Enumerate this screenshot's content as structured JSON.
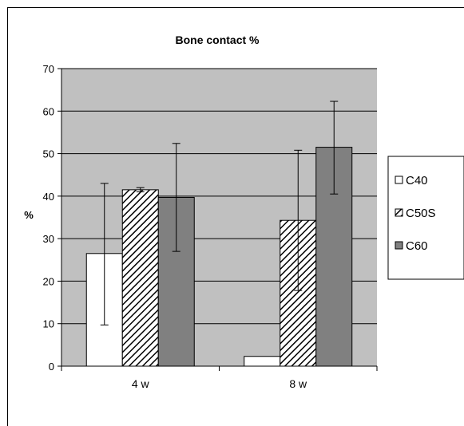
{
  "chart_data": {
    "type": "bar",
    "title": "Bone contact %",
    "xlabel": "",
    "ylabel": "%",
    "ylim": [
      0,
      70
    ],
    "yticks": [
      0,
      10,
      20,
      30,
      40,
      50,
      60,
      70
    ],
    "grid": true,
    "legend_position": "right",
    "categories": [
      "4 w",
      "8 w"
    ],
    "series": [
      {
        "name": "C40",
        "values": [
          26.5,
          2.3
        ],
        "error_low": [
          9.7,
          null
        ],
        "error_high": [
          43.0,
          null
        ],
        "fill": "#ffffff",
        "pattern": "none"
      },
      {
        "name": "C50S",
        "values": [
          41.5,
          34.3
        ],
        "error_low": [
          41.0,
          17.8
        ],
        "error_high": [
          42.0,
          50.8
        ],
        "fill": "#ffffff",
        "pattern": "diagonal-hatch"
      },
      {
        "name": "C60",
        "values": [
          39.7,
          51.5
        ],
        "error_low": [
          27.0,
          40.5
        ],
        "error_high": [
          52.4,
          62.3
        ],
        "fill": "#808080",
        "pattern": "none"
      }
    ],
    "plot_area_color": "#c0c0c0"
  }
}
